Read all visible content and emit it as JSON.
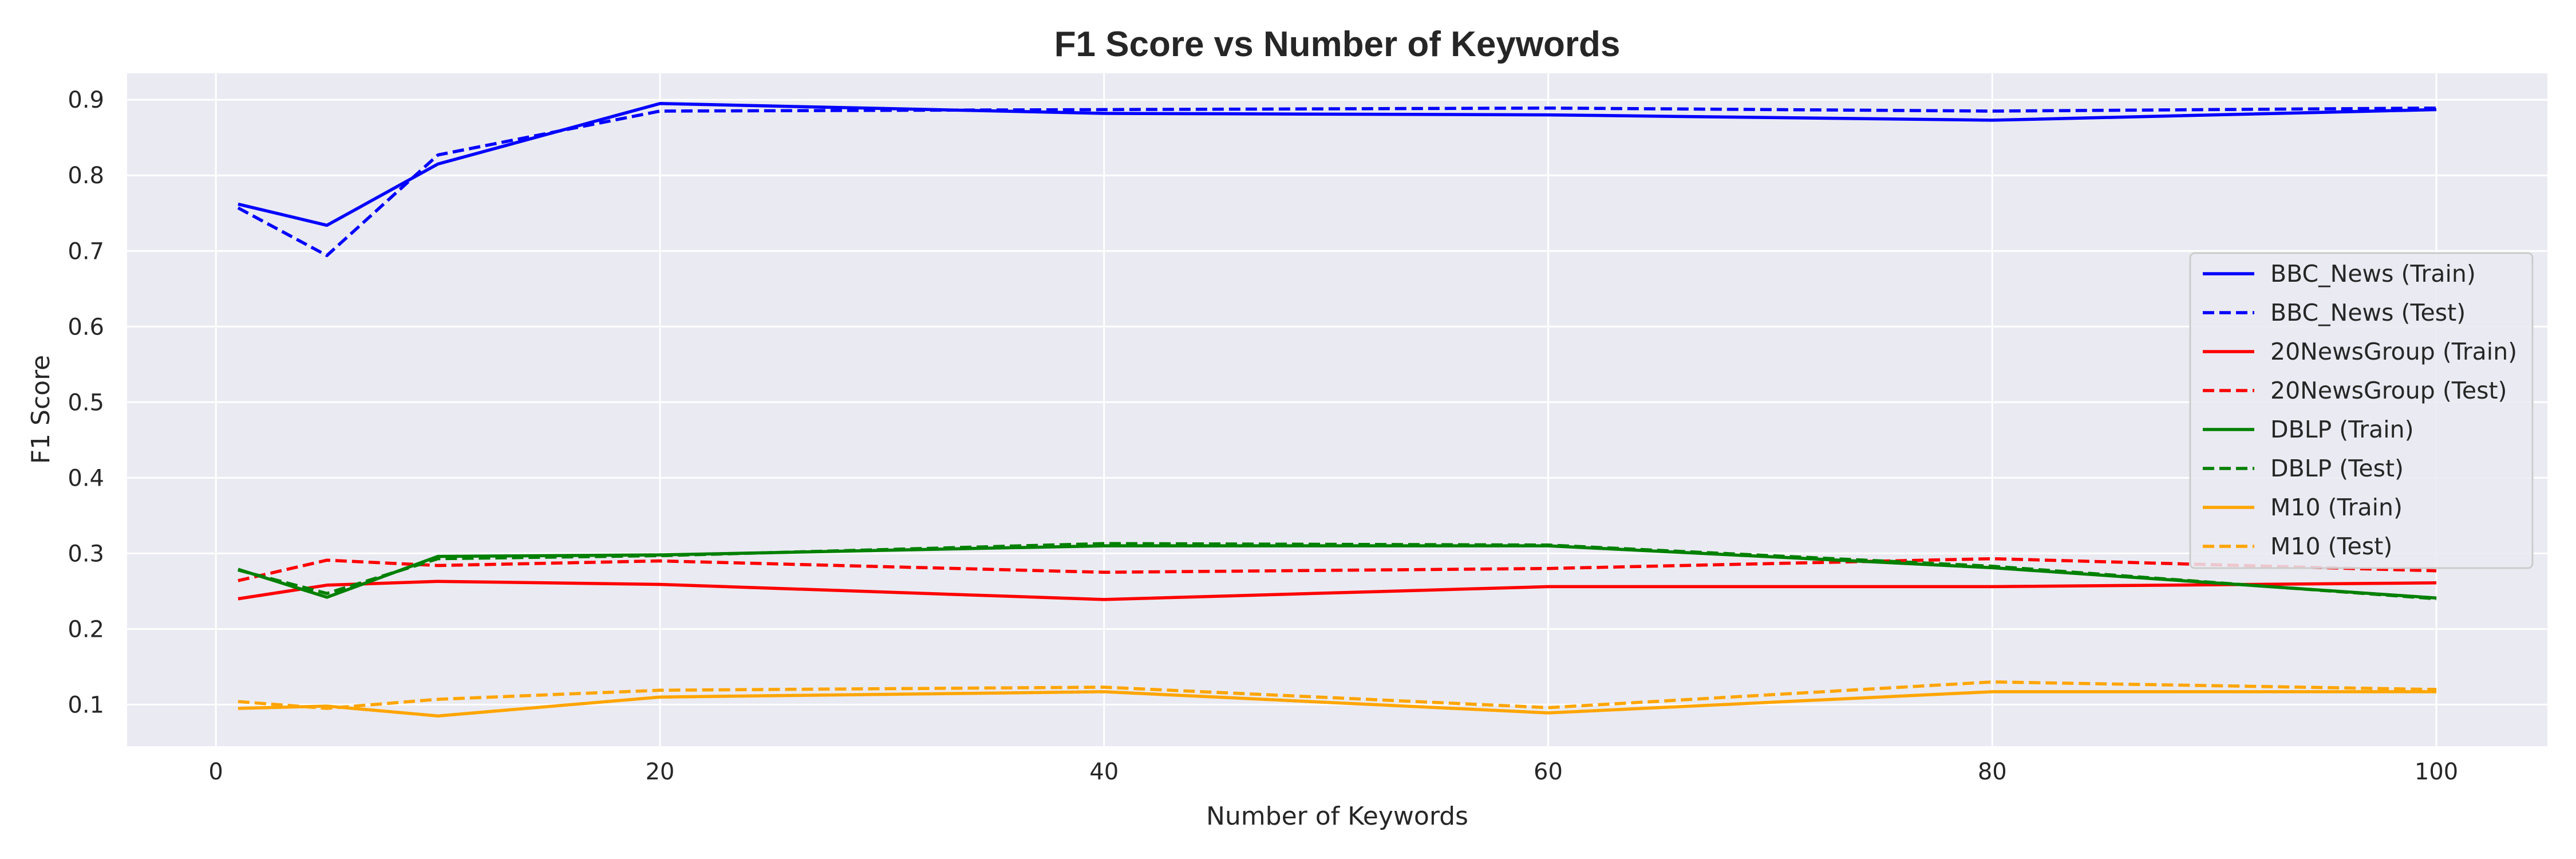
{
  "chart_data": {
    "type": "line",
    "title": "F1 Score vs Number of Keywords",
    "xlabel": "Number of Keywords",
    "ylabel": "F1 Score",
    "xlim": [
      -4,
      105
    ],
    "ylim": [
      0.045,
      0.935
    ],
    "xticks": [
      0,
      20,
      40,
      60,
      80,
      100
    ],
    "xtick_labels": [
      "0",
      "20",
      "40",
      "60",
      "80",
      "100"
    ],
    "yticks": [
      0.1,
      0.2,
      0.3,
      0.4,
      0.5,
      0.6,
      0.7,
      0.8,
      0.9
    ],
    "ytick_labels": [
      "0.1",
      "0.2",
      "0.3",
      "0.4",
      "0.5",
      "0.6",
      "0.7",
      "0.8",
      "0.9"
    ],
    "grid": true,
    "legend_position": "center-right",
    "x": [
      1,
      5,
      10,
      20,
      40,
      60,
      80,
      100
    ],
    "series": [
      {
        "name": "BBC_News (Train)",
        "color": "#0000ff",
        "dash": "solid",
        "values": [
          0.762,
          0.734,
          0.815,
          0.895,
          0.882,
          0.88,
          0.873,
          0.887
        ]
      },
      {
        "name": "BBC_News (Test)",
        "color": "#0000ff",
        "dash": "dashed",
        "values": [
          0.757,
          0.694,
          0.827,
          0.885,
          0.887,
          0.889,
          0.885,
          0.889
        ]
      },
      {
        "name": "20NewsGroup (Train)",
        "color": "#ff0000",
        "dash": "solid",
        "values": [
          0.24,
          0.258,
          0.263,
          0.259,
          0.239,
          0.256,
          0.256,
          0.261
        ]
      },
      {
        "name": "20NewsGroup (Test)",
        "color": "#ff0000",
        "dash": "dashed",
        "values": [
          0.264,
          0.291,
          0.284,
          0.29,
          0.275,
          0.28,
          0.293,
          0.277
        ]
      },
      {
        "name": "DBLP (Train)",
        "color": "#008000",
        "dash": "solid",
        "values": [
          0.279,
          0.242,
          0.296,
          0.298,
          0.31,
          0.31,
          0.281,
          0.241
        ]
      },
      {
        "name": "DBLP (Test)",
        "color": "#008000",
        "dash": "dashed",
        "values": [
          0.278,
          0.247,
          0.293,
          0.297,
          0.313,
          0.311,
          0.283,
          0.24
        ]
      },
      {
        "name": "M10 (Train)",
        "color": "#ffa500",
        "dash": "solid",
        "values": [
          0.095,
          0.098,
          0.085,
          0.11,
          0.117,
          0.089,
          0.117,
          0.117
        ]
      },
      {
        "name": "M10 (Test)",
        "color": "#ffa500",
        "dash": "dashed",
        "values": [
          0.104,
          0.095,
          0.107,
          0.119,
          0.123,
          0.096,
          0.13,
          0.12
        ]
      }
    ]
  }
}
